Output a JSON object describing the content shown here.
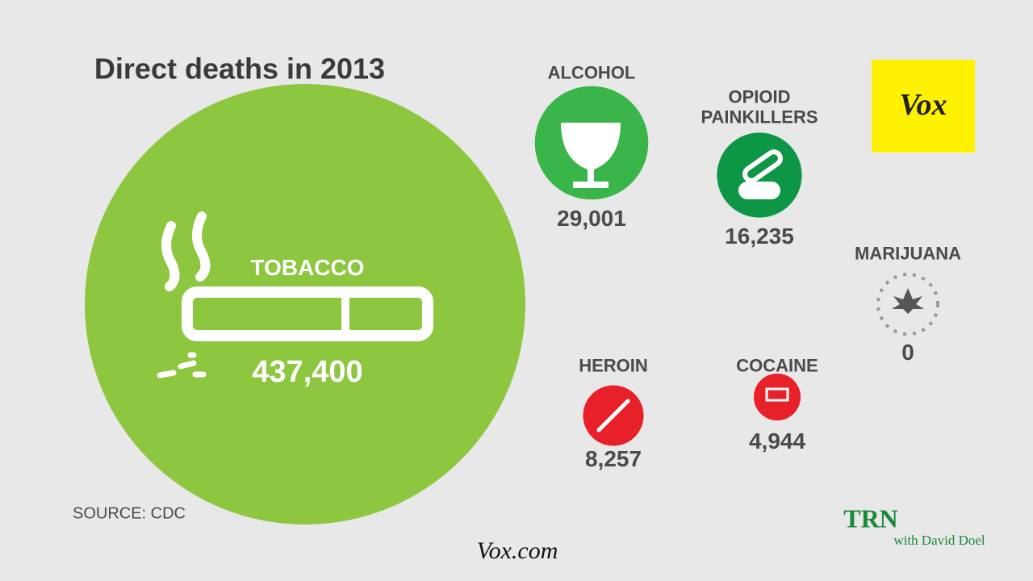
{
  "chart_data": {
    "type": "bubble",
    "title": "Direct deaths in 2013",
    "source": "SOURCE: CDC",
    "categories": [
      "TOBACCO",
      "ALCOHOL",
      "OPIOID PAINKILLERS",
      "HEROIN",
      "COCAINE",
      "MARIJUANA"
    ],
    "values": [
      437400,
      29001,
      16235,
      8257,
      4944,
      0
    ],
    "value_labels": [
      "437,400",
      "29,001",
      "16,235",
      "8,257",
      "4,944",
      "0"
    ],
    "colors": [
      "#8dc63f",
      "#3ab54a",
      "#0d9645",
      "#e8202a",
      "#e8202a",
      "#999999"
    ]
  },
  "branding": {
    "logo": "Vox",
    "site": "Vox.com",
    "watermark": "TRN",
    "watermark_sub": "with David Doel"
  }
}
